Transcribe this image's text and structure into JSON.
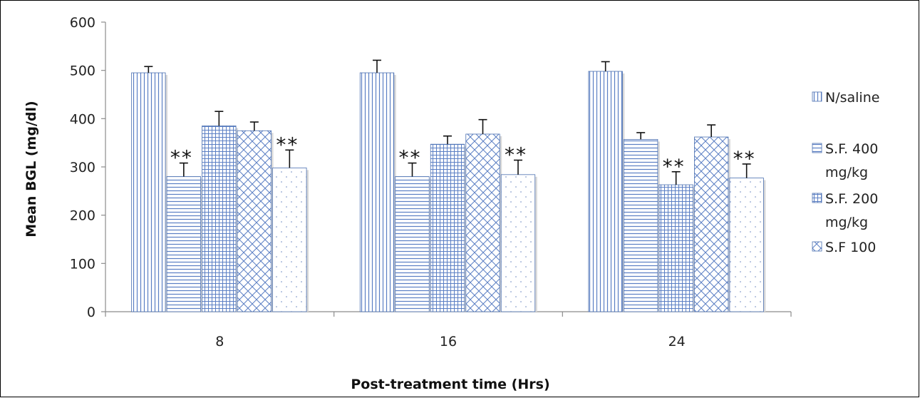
{
  "chart_data": {
    "type": "bar",
    "title": "",
    "xlabel": "Post-treatment time (Hrs)",
    "ylabel": "Mean BGL (mg/dl)",
    "ylim": [
      0,
      600
    ],
    "yticks": [
      "0",
      "100",
      "200",
      "300",
      "400",
      "500",
      "600"
    ],
    "categories": [
      "8",
      "16",
      "24"
    ],
    "grid": false,
    "legend_position": "right",
    "series": [
      {
        "name": "N/saline",
        "values": [
          495,
          495,
          498
        ],
        "errors": [
          13,
          26,
          20
        ],
        "pattern": "vertical-lines"
      },
      {
        "name": "S.F. 400 mg/kg",
        "values": [
          280,
          280,
          357
        ],
        "errors": [
          28,
          28,
          14
        ],
        "pattern": "horizontal-lines"
      },
      {
        "name": "S.F. 200 mg/kg",
        "values": [
          385,
          347,
          263
        ],
        "errors": [
          30,
          17,
          27
        ],
        "pattern": "grid"
      },
      {
        "name": "S.F 100",
        "values": [
          375,
          368,
          362
        ],
        "errors": [
          18,
          30,
          25
        ],
        "pattern": "crosshatch"
      },
      {
        "name": "",
        "values": [
          298,
          284,
          277
        ],
        "errors": [
          37,
          30,
          29
        ],
        "pattern": "dots"
      }
    ],
    "significance": [
      {
        "category": 0,
        "series": 1,
        "label": "**"
      },
      {
        "category": 0,
        "series": 4,
        "label": "**"
      },
      {
        "category": 1,
        "series": 1,
        "label": "**"
      },
      {
        "category": 1,
        "series": 4,
        "label": "**"
      },
      {
        "category": 2,
        "series": 2,
        "label": "**"
      },
      {
        "category": 2,
        "series": 4,
        "label": "**"
      }
    ],
    "legend_lines": [
      {
        "series": 0,
        "lines": [
          "N/saline"
        ]
      },
      {
        "series": 1,
        "lines": [
          "S.F. 400",
          "mg/kg"
        ]
      },
      {
        "series": 2,
        "lines": [
          "S.F. 200",
          "mg/kg"
        ]
      },
      {
        "series": 3,
        "lines": [
          "S.F 100"
        ]
      }
    ],
    "colors": {
      "bar_stroke": "#4a6fb0",
      "pattern": "#5b7fc4",
      "axis": "#8c8c8c",
      "error": "#111111"
    }
  }
}
